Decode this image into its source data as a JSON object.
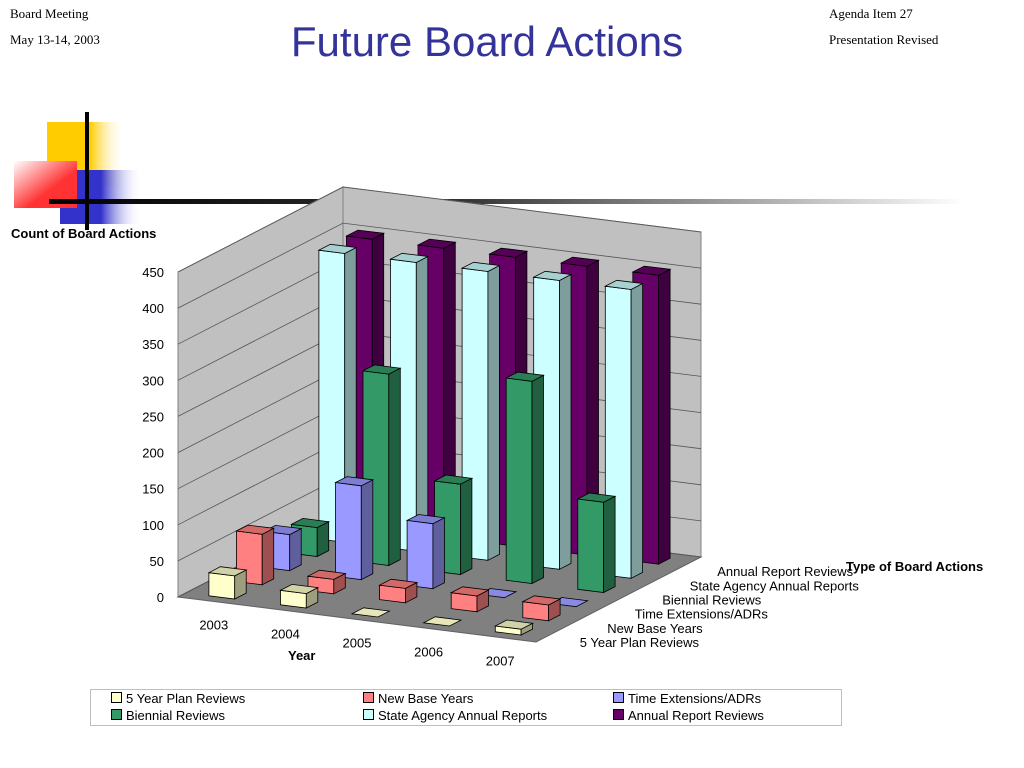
{
  "header": {
    "left_line1": "Board Meeting",
    "left_line2": "May 13-14, 2003",
    "right_line1": "Agenda Item 27",
    "right_line2": "Presentation Revised",
    "title": "Future Board Actions"
  },
  "chart_data": {
    "type": "bar",
    "title": "",
    "ylabel": "Count of Board Actions",
    "xlabel": "Year",
    "zlabel": "Type of Board Actions",
    "ylim": [
      0,
      450
    ],
    "yticks": [
      0,
      50,
      100,
      150,
      200,
      250,
      300,
      350,
      400,
      450
    ],
    "categories": [
      "2003",
      "2004",
      "2005",
      "2006",
      "2007"
    ],
    "grid": true,
    "legend_position": "bottom",
    "series": [
      {
        "name": "5 Year Plan Reviews",
        "color": "#ffffcc",
        "values": [
          32,
          20,
          0,
          0,
          8
        ]
      },
      {
        "name": "New Base Years",
        "color": "#ff8080",
        "values": [
          70,
          20,
          20,
          22,
          22
        ]
      },
      {
        "name": "Time Extensions/ADRs",
        "color": "#9999ff",
        "values": [
          50,
          130,
          90,
          0,
          0
        ]
      },
      {
        "name": "Biennial Reviews",
        "color": "#339966",
        "values": [
          40,
          265,
          125,
          280,
          125
        ]
      },
      {
        "name": "State Agency Annual Reports",
        "color": "#ccffff",
        "values": [
          400,
          400,
          400,
          400,
          400
        ]
      },
      {
        "name": "Annual Report Reviews",
        "color": "#660066",
        "values": [
          400,
          400,
          400,
          400,
          400
        ]
      }
    ]
  }
}
